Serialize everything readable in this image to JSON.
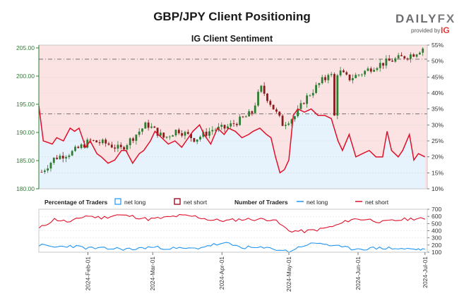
{
  "header": {
    "title": "GBP/JPY Client Positioning",
    "subtitle": "IG Client Sentiment",
    "brand_word": "DAILY",
    "brand_fx": "FX",
    "brand_by": "provided by",
    "brand_ig": "IG"
  },
  "colors": {
    "price_axis": "#2e7d32",
    "net_long": "#2196f3",
    "net_short": "#e0102a",
    "long_fill": "#e6f3fc",
    "short_fill": "#fbe3e3",
    "candle_up": "#2e7d32",
    "candle_down": "#8b1a1a"
  },
  "chart_data": [
    {
      "type": "candlestick",
      "title": "GBP/JPY Client Positioning",
      "subtitle": "IG Client Sentiment",
      "y_left_ticks": [
        "180.00",
        "185.00",
        "190.00",
        "195.00",
        "200.00",
        "205.00"
      ],
      "y_left_range": [
        180,
        205.5
      ],
      "y_right_ticks": [
        "10%",
        "15%",
        "20%",
        "25%",
        "30%",
        "35%",
        "40%",
        "45%",
        "50%",
        "55%"
      ],
      "y_right_range": [
        10,
        55
      ],
      "x_range": [
        "2024-01-10",
        "2024-07-02"
      ],
      "reference_lines": [
        203.0,
        193.3
      ],
      "net_short_pct": [
        [
          "2024-01-10",
          36
        ],
        [
          "2024-01-12",
          25
        ],
        [
          "2024-01-16",
          24
        ],
        [
          "2024-01-18",
          26
        ],
        [
          "2024-01-21",
          25
        ],
        [
          "2024-01-24",
          29
        ],
        [
          "2024-01-26",
          28
        ],
        [
          "2024-01-28",
          29
        ],
        [
          "2024-01-31",
          23
        ],
        [
          "2024-02-02",
          25
        ],
        [
          "2024-02-05",
          21
        ],
        [
          "2024-02-07",
          20
        ],
        [
          "2024-02-10",
          18
        ],
        [
          "2024-02-13",
          19
        ],
        [
          "2024-02-16",
          22
        ],
        [
          "2024-02-18",
          22
        ],
        [
          "2024-02-21",
          18
        ],
        [
          "2024-02-24",
          21
        ],
        [
          "2024-02-26",
          22
        ],
        [
          "2024-02-29",
          25
        ],
        [
          "2024-03-02",
          28
        ],
        [
          "2024-03-05",
          26
        ],
        [
          "2024-03-08",
          24
        ],
        [
          "2024-03-11",
          25
        ],
        [
          "2024-03-14",
          23
        ],
        [
          "2024-03-16",
          25
        ],
        [
          "2024-03-19",
          28
        ],
        [
          "2024-03-22",
          30
        ],
        [
          "2024-03-24",
          27
        ],
        [
          "2024-03-27",
          24
        ],
        [
          "2024-03-30",
          29
        ],
        [
          "2024-04-02",
          27
        ],
        [
          "2024-04-04",
          29
        ],
        [
          "2024-04-07",
          28
        ],
        [
          "2024-04-10",
          26
        ],
        [
          "2024-04-13",
          27
        ],
        [
          "2024-04-15",
          28
        ],
        [
          "2024-04-18",
          29
        ],
        [
          "2024-04-21",
          27
        ],
        [
          "2024-04-23",
          26
        ],
        [
          "2024-04-25",
          20
        ],
        [
          "2024-04-27",
          15
        ],
        [
          "2024-04-29",
          16
        ],
        [
          "2024-05-01",
          19
        ],
        [
          "2024-05-03",
          33
        ],
        [
          "2024-05-05",
          35
        ],
        [
          "2024-05-08",
          34
        ],
        [
          "2024-05-11",
          35
        ],
        [
          "2024-05-14",
          33
        ],
        [
          "2024-05-17",
          33
        ],
        [
          "2024-05-20",
          32
        ],
        [
          "2024-05-23",
          25
        ],
        [
          "2024-05-25",
          22
        ],
        [
          "2024-05-28",
          27
        ],
        [
          "2024-05-31",
          20
        ],
        [
          "2024-06-03",
          21
        ],
        [
          "2024-06-06",
          22
        ],
        [
          "2024-06-09",
          20
        ],
        [
          "2024-06-12",
          20
        ],
        [
          "2024-06-14",
          28
        ],
        [
          "2024-06-16",
          22
        ],
        [
          "2024-06-19",
          20
        ],
        [
          "2024-06-21",
          22
        ],
        [
          "2024-06-24",
          27
        ],
        [
          "2024-06-26",
          19
        ],
        [
          "2024-06-28",
          21
        ],
        [
          "2024-07-01",
          20
        ]
      ]
    },
    {
      "type": "line",
      "legend_percentage_title": "Percentage of Traders",
      "legend_number_title": "Number of Traders",
      "legend_long": "net long",
      "legend_short": "net short",
      "y_ticks": [
        "100",
        "200",
        "300",
        "400",
        "500",
        "600",
        "700"
      ],
      "y_range": [
        100,
        700
      ],
      "x_ticks": [
        "2024-Feb-01",
        "2024-Mar-01",
        "2024-Apr-01",
        "2024-May-01",
        "2024-Jun-01",
        "2024-Jul-01"
      ],
      "series": [
        {
          "name": "net short",
          "x": [
            "2024-01-10",
            "2024-01-17",
            "2024-01-24",
            "2024-01-31",
            "2024-02-07",
            "2024-02-14",
            "2024-02-21",
            "2024-02-28",
            "2024-03-06",
            "2024-03-13",
            "2024-03-20",
            "2024-03-27",
            "2024-04-03",
            "2024-04-10",
            "2024-04-17",
            "2024-04-24",
            "2024-05-01",
            "2024-05-08",
            "2024-05-15",
            "2024-05-22",
            "2024-05-29",
            "2024-06-05",
            "2024-06-12",
            "2024-06-19",
            "2024-06-26",
            "2024-07-01"
          ],
          "values": [
            430,
            560,
            520,
            610,
            580,
            620,
            600,
            560,
            580,
            610,
            600,
            550,
            540,
            560,
            560,
            560,
            400,
            390,
            420,
            470,
            560,
            560,
            520,
            550,
            570,
            560
          ]
        },
        {
          "name": "net long",
          "x": [
            "2024-01-10",
            "2024-01-17",
            "2024-01-24",
            "2024-01-31",
            "2024-02-07",
            "2024-02-14",
            "2024-02-21",
            "2024-02-28",
            "2024-03-06",
            "2024-03-13",
            "2024-03-20",
            "2024-03-27",
            "2024-04-03",
            "2024-04-10",
            "2024-04-17",
            "2024-04-24",
            "2024-05-01",
            "2024-05-08",
            "2024-05-15",
            "2024-05-22",
            "2024-05-29",
            "2024-06-05",
            "2024-06-12",
            "2024-06-19",
            "2024-06-26",
            "2024-07-01"
          ],
          "values": [
            200,
            170,
            190,
            160,
            150,
            150,
            140,
            170,
            160,
            150,
            150,
            200,
            220,
            170,
            160,
            150,
            110,
            200,
            230,
            180,
            150,
            150,
            160,
            150,
            140,
            140
          ]
        }
      ]
    }
  ]
}
